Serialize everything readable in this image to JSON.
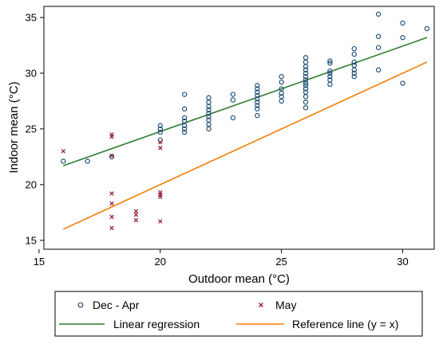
{
  "chart_data": {
    "type": "scatter",
    "xlabel": "Outdoor mean (°C)",
    "ylabel": "Indoor mean (°C)",
    "xlim": [
      15.2,
      31.3
    ],
    "ylim": [
      14.2,
      36.0
    ],
    "x_ticks": [
      15,
      20,
      25,
      30
    ],
    "y_ticks": [
      15,
      20,
      25,
      30,
      35
    ],
    "grid": false,
    "legend_placement": "bottom",
    "colors": {
      "dec_apr": "#1F4E79",
      "may": "#9E1F3B",
      "regression": "#2E7D32",
      "reference": "#F57C00",
      "plot_region_bg": "#EAF2F3",
      "outer_bg": "#FFFFFF"
    },
    "series": [
      {
        "name": "Dec - Apr",
        "marker": "circle",
        "points": [
          [
            16,
            22.1
          ],
          [
            17,
            22.1
          ],
          [
            18,
            22.5
          ],
          [
            20,
            24.0
          ],
          [
            20,
            24.7
          ],
          [
            20,
            25.0
          ],
          [
            20,
            25.3
          ],
          [
            21,
            24.7
          ],
          [
            21,
            25.0
          ],
          [
            21,
            25.3
          ],
          [
            21,
            25.7
          ],
          [
            21,
            26.0
          ],
          [
            21,
            26.8
          ],
          [
            21,
            28.1
          ],
          [
            22,
            25.0
          ],
          [
            22,
            25.4
          ],
          [
            22,
            25.8
          ],
          [
            22,
            26.1
          ],
          [
            22,
            26.4
          ],
          [
            22,
            26.7
          ],
          [
            22,
            27.0
          ],
          [
            22,
            27.4
          ],
          [
            22,
            27.8
          ],
          [
            23,
            26.0
          ],
          [
            23,
            27.6
          ],
          [
            23,
            28.1
          ],
          [
            24,
            26.2
          ],
          [
            24,
            26.8
          ],
          [
            24,
            27.1
          ],
          [
            24,
            27.4
          ],
          [
            24,
            27.7
          ],
          [
            24,
            28.0
          ],
          [
            24,
            28.3
          ],
          [
            24,
            28.6
          ],
          [
            24,
            28.9
          ],
          [
            25,
            27.5
          ],
          [
            25,
            27.9
          ],
          [
            25,
            28.2
          ],
          [
            25,
            28.6
          ],
          [
            25,
            29.2
          ],
          [
            25,
            29.7
          ],
          [
            26,
            26.9
          ],
          [
            26,
            27.4
          ],
          [
            26,
            27.9
          ],
          [
            26,
            28.3
          ],
          [
            26,
            28.6
          ],
          [
            26,
            28.9
          ],
          [
            26,
            29.1
          ],
          [
            26,
            29.4
          ],
          [
            26,
            29.7
          ],
          [
            26,
            30.0
          ],
          [
            26,
            30.3
          ],
          [
            26,
            30.6
          ],
          [
            26,
            31.0
          ],
          [
            26,
            31.4
          ],
          [
            27,
            29.0
          ],
          [
            27,
            29.4
          ],
          [
            27,
            29.7
          ],
          [
            27,
            30.0
          ],
          [
            27,
            30.2
          ],
          [
            27,
            30.9
          ],
          [
            27,
            31.1
          ],
          [
            28,
            29.7
          ],
          [
            28,
            30.0
          ],
          [
            28,
            30.3
          ],
          [
            28,
            30.7
          ],
          [
            28,
            31.0
          ],
          [
            28,
            31.7
          ],
          [
            28,
            32.2
          ],
          [
            29,
            30.3
          ],
          [
            29,
            32.3
          ],
          [
            29,
            33.3
          ],
          [
            29,
            35.3
          ],
          [
            30,
            29.1
          ],
          [
            30,
            33.2
          ],
          [
            30,
            34.5
          ],
          [
            31,
            34.0
          ]
        ]
      },
      {
        "name": "May",
        "marker": "x",
        "points": [
          [
            16,
            23.0
          ],
          [
            18,
            24.3
          ],
          [
            18,
            24.5
          ],
          [
            18,
            22.6
          ],
          [
            18,
            19.2
          ],
          [
            18,
            18.3
          ],
          [
            18,
            17.1
          ],
          [
            18,
            16.1
          ],
          [
            19,
            17.6
          ],
          [
            19,
            17.3
          ],
          [
            19,
            16.8
          ],
          [
            20,
            23.8
          ],
          [
            20,
            23.3
          ],
          [
            20,
            19.3
          ],
          [
            20,
            19.1
          ],
          [
            20,
            18.9
          ],
          [
            20,
            16.7
          ]
        ]
      },
      {
        "name": "Linear regression",
        "line": true,
        "x": [
          16,
          31
        ],
        "y": [
          21.7,
          33.2
        ]
      },
      {
        "name": "Reference line (y = x)",
        "line": true,
        "x": [
          16,
          31
        ],
        "y": [
          16,
          31
        ]
      }
    ]
  }
}
